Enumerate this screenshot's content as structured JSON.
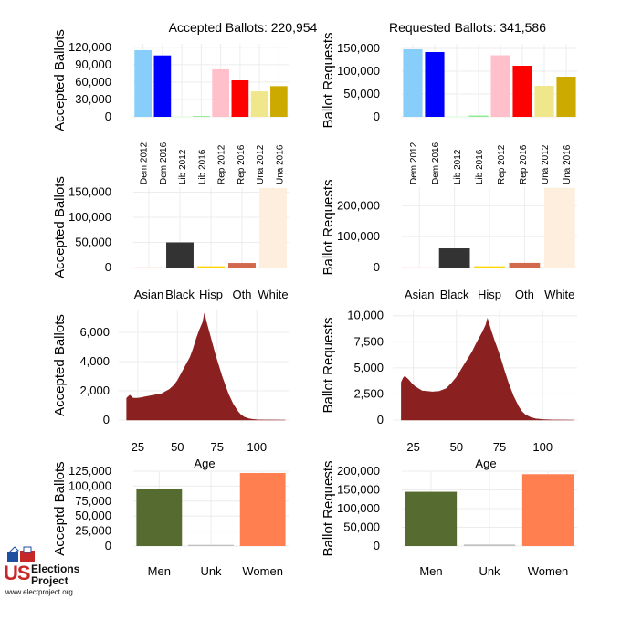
{
  "colors": {
    "party": [
      "#87cefa",
      "#0000ff",
      "#ccffcc",
      "#90ee90",
      "#ffc0cb",
      "#ff0000",
      "#f0e68c",
      "#ccaa00"
    ],
    "race": [
      "#ffe4e1",
      "#333333",
      "#ffd700",
      "#d2694d",
      "#fdeedd"
    ],
    "age": "#8b2020",
    "gender": [
      "#556b2f",
      "#c0c0c0",
      "#ff7f50"
    ],
    "grid": "#ececec"
  },
  "logo": {
    "us": "US",
    "line1": "Elections",
    "line2": "Project",
    "url": "www.electproject.org",
    "icon": "ballot-box-icon"
  },
  "chart_data": [
    {
      "id": "party-accepted",
      "type": "bar",
      "title": "Accepted Ballots:  220,954",
      "ylabel": "Accepted Ballots",
      "xlabel": "",
      "categories": [
        "Dem 2012",
        "Dem 2016",
        "Lib 2012",
        "Lib 2016",
        "Rep 2012",
        "Rep 2016",
        "Una 2012",
        "Una 2016"
      ],
      "values": [
        115000,
        106000,
        500,
        1500,
        82000,
        63000,
        44000,
        53000
      ],
      "ylim": [
        0,
        126000
      ],
      "yticks": [
        0,
        30000,
        60000,
        90000,
        120000
      ],
      "ytick_labels": [
        "0",
        "30,000",
        "60,000",
        "90,000",
        "120,000"
      ],
      "rotate_x": true
    },
    {
      "id": "party-requested",
      "type": "bar",
      "title": "Requested Ballots:  341,586",
      "ylabel": "Ballot Requests",
      "xlabel": "",
      "categories": [
        "Dem 2012",
        "Dem 2016",
        "Lib 2012",
        "Lib 2016",
        "Rep 2012",
        "Rep 2016",
        "Una 2012",
        "Una 2016"
      ],
      "values": [
        148000,
        142000,
        1000,
        3000,
        135000,
        112000,
        68000,
        88000
      ],
      "ylim": [
        0,
        160000
      ],
      "yticks": [
        0,
        50000,
        100000,
        150000
      ],
      "ytick_labels": [
        "0",
        "50,000",
        "100,000",
        "150,000"
      ],
      "rotate_x": true
    },
    {
      "id": "race-accepted",
      "type": "bar",
      "title": "",
      "ylabel": "Accepted Ballots",
      "xlabel": "",
      "categories": [
        "Asian",
        "Black",
        "Hisp",
        "Oth",
        "White"
      ],
      "values": [
        1000,
        50000,
        2500,
        9000,
        158000
      ],
      "ylim": [
        0,
        160000
      ],
      "yticks": [
        0,
        50000,
        100000,
        150000
      ],
      "ytick_labels": [
        "0",
        "50,000",
        "100,000",
        "150,000"
      ],
      "rotate_x": false
    },
    {
      "id": "race-requested",
      "type": "bar",
      "title": "",
      "ylabel": "Ballot Requests",
      "xlabel": "",
      "categories": [
        "Asian",
        "Black",
        "Hisp",
        "Oth",
        "White"
      ],
      "values": [
        1500,
        62000,
        4000,
        15000,
        258000
      ],
      "ylim": [
        0,
        260000
      ],
      "yticks": [
        0,
        100000,
        200000
      ],
      "ytick_labels": [
        "0",
        "100,000",
        "200,000"
      ],
      "rotate_x": false
    },
    {
      "id": "age-accepted",
      "type": "area",
      "title": "",
      "ylabel": "Accepted Ballots",
      "xlabel": "Age",
      "x": [
        18,
        19,
        20,
        22,
        25,
        28,
        30,
        35,
        40,
        45,
        48,
        50,
        52,
        55,
        58,
        60,
        62,
        64,
        66,
        67,
        68,
        70,
        72,
        74,
        76,
        78,
        80,
        82,
        85,
        88,
        90,
        92,
        95,
        98,
        100,
        105,
        110,
        118
      ],
      "y": [
        1500,
        1600,
        1700,
        1500,
        1500,
        1550,
        1600,
        1700,
        1800,
        2100,
        2400,
        2700,
        3100,
        3700,
        4300,
        4900,
        5600,
        6200,
        6700,
        7300,
        6800,
        6000,
        5200,
        4400,
        3700,
        3000,
        2400,
        1800,
        1100,
        600,
        350,
        200,
        90,
        40,
        20,
        8,
        5,
        0
      ],
      "xlim": [
        13,
        120
      ],
      "ylim": [
        0,
        7500
      ],
      "xticks": [
        25,
        50,
        75,
        100
      ],
      "yticks": [
        0,
        2000,
        4000,
        6000
      ],
      "ytick_labels": [
        "0",
        "2,000",
        "4,000",
        "6,000"
      ]
    },
    {
      "id": "age-requested",
      "type": "area",
      "title": "",
      "ylabel": "Ballot Requests",
      "xlabel": "Age",
      "x": [
        18,
        19,
        20,
        22,
        24,
        26,
        28,
        30,
        33,
        36,
        40,
        44,
        47,
        50,
        53,
        56,
        59,
        62,
        65,
        67,
        68,
        70,
        72,
        74,
        76,
        78,
        80,
        83,
        86,
        88,
        90,
        93,
        96,
        100,
        105,
        110,
        118
      ],
      "y": [
        3600,
        4000,
        4200,
        3900,
        3500,
        3200,
        3000,
        2800,
        2750,
        2700,
        2750,
        3000,
        3500,
        4100,
        4900,
        5700,
        6500,
        7500,
        8400,
        9100,
        9700,
        8600,
        7600,
        6700,
        5700,
        4600,
        3600,
        2300,
        1300,
        800,
        500,
        250,
        120,
        50,
        20,
        10,
        0
      ],
      "xlim": [
        13,
        120
      ],
      "ylim": [
        0,
        10500
      ],
      "xticks": [
        25,
        50,
        75,
        100
      ],
      "yticks": [
        0,
        2500,
        5000,
        7500,
        10000
      ],
      "ytick_labels": [
        "0",
        "2,500",
        "5,000",
        "7,500",
        "10,000"
      ]
    },
    {
      "id": "gender-accepted",
      "type": "bar",
      "title": "",
      "ylabel": "Acceptd Ballots",
      "xlabel": "",
      "categories": [
        "Men",
        "Unk",
        "Women"
      ],
      "values": [
        96000,
        2000,
        122000
      ],
      "ylim": [
        0,
        125000
      ],
      "yticks": [
        0,
        25000,
        50000,
        75000,
        100000,
        125000
      ],
      "ytick_labels": [
        "0",
        "25,000",
        "50,000",
        "75,000",
        "100,000",
        "125,000"
      ],
      "rotate_x": false
    },
    {
      "id": "gender-requested",
      "type": "bar",
      "title": "",
      "ylabel": "Ballot Requests",
      "xlabel": "",
      "categories": [
        "Men",
        "Unk",
        "Women"
      ],
      "values": [
        145000,
        4000,
        192000
      ],
      "ylim": [
        0,
        200000
      ],
      "yticks": [
        0,
        50000,
        100000,
        150000,
        200000
      ],
      "ytick_labels": [
        "0",
        "50,000",
        "100,000",
        "150,000",
        "200,000"
      ],
      "rotate_x": false
    }
  ]
}
